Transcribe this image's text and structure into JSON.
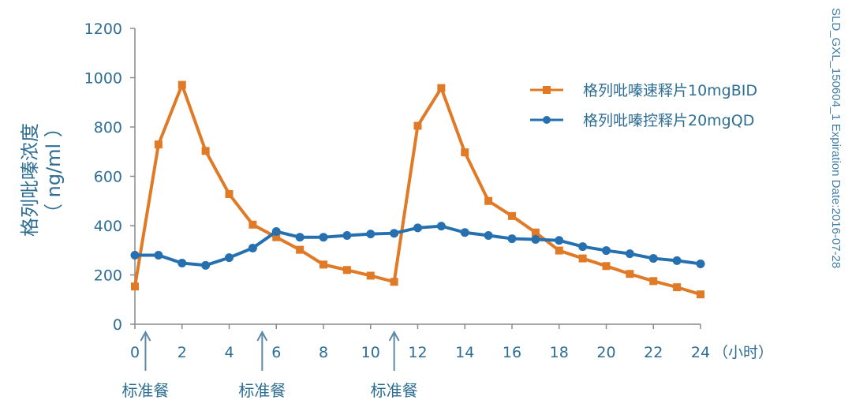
{
  "chart_data": {
    "type": "line",
    "title": "",
    "xlabel": "（小时）",
    "ylabel": "格列吡嗪浓度",
    "ylabel_unit": "（ ng/ml ）",
    "x": [
      0,
      1,
      2,
      3,
      4,
      5,
      6,
      7,
      8,
      9,
      10,
      11,
      12,
      13,
      14,
      15,
      16,
      17,
      18,
      19,
      20,
      21,
      22,
      23,
      24
    ],
    "xticks": [
      0,
      2,
      4,
      6,
      8,
      10,
      12,
      14,
      16,
      18,
      20,
      22,
      24
    ],
    "yticks": [
      0,
      200,
      400,
      600,
      800,
      1000,
      1200
    ],
    "xlim": [
      0,
      24
    ],
    "ylim": [
      0,
      1200
    ],
    "grid": false,
    "legend_position": "upper right",
    "series": [
      {
        "name": "格列吡嗪速释片10mgBID",
        "color": "#e07a26",
        "marker": "square",
        "values": [
          153,
          729,
          971,
          703,
          528,
          404,
          353,
          302,
          242,
          220,
          197,
          172,
          805,
          958,
          697,
          500,
          439,
          372,
          299,
          267,
          236,
          204,
          175,
          150,
          121
        ]
      },
      {
        "name": "格列吡嗪控释片20mgQD",
        "color": "#2670b0",
        "marker": "circle",
        "values": [
          280,
          280,
          248,
          239,
          270,
          309,
          376,
          353,
          353,
          360,
          366,
          369,
          391,
          398,
          372,
          360,
          347,
          344,
          340,
          315,
          299,
          286,
          267,
          258,
          245
        ]
      }
    ],
    "annotations": [
      {
        "text": "标准餐",
        "x": 0.45,
        "type": "arrow-up"
      },
      {
        "text": "标准餐",
        "x": 5.4,
        "type": "arrow-up"
      },
      {
        "text": "标准餐",
        "x": 11.0,
        "type": "arrow-up"
      }
    ]
  },
  "side_note": "SLD_GXL_150604_1    Expiration  Date:2016-07-28",
  "colors": {
    "axis": "#8a8a8a",
    "text": "#2e6e93",
    "orange": "#e07a26",
    "blue": "#2670b0"
  }
}
